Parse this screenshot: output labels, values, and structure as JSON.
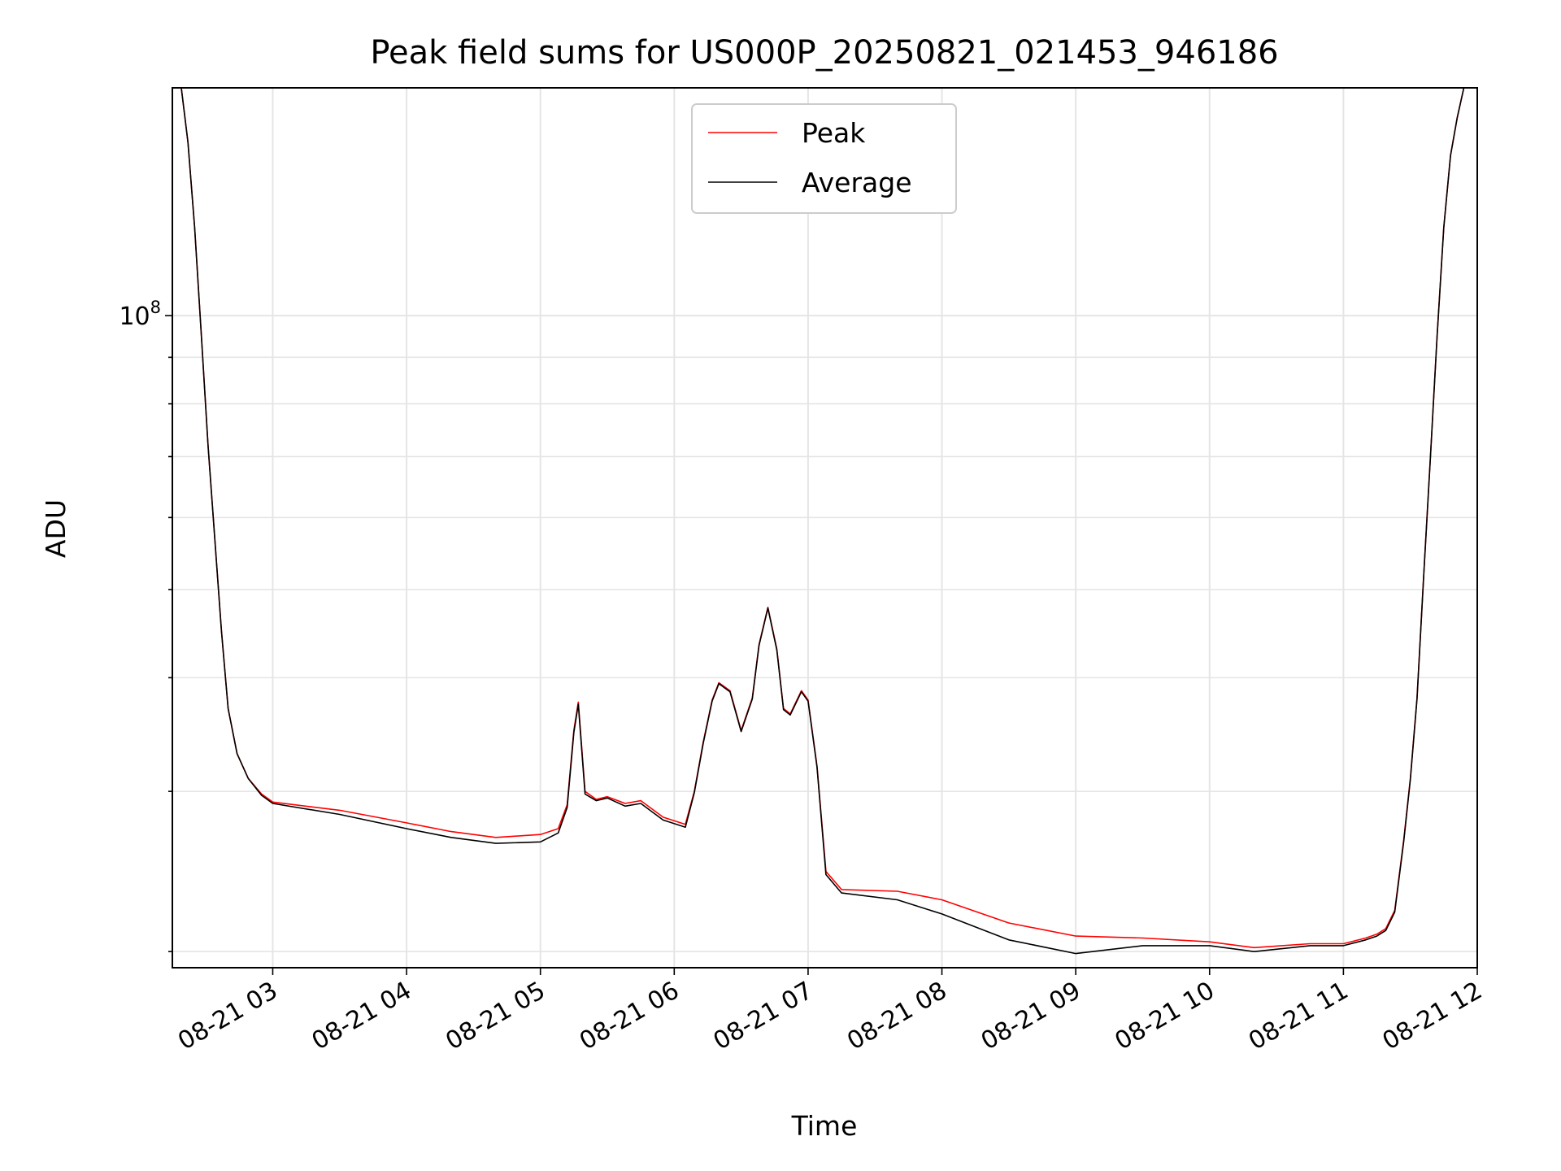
{
  "chart_data": {
    "type": "line",
    "title": "Peak field sums for US000P_20250821_021453_946186",
    "xlabel": "Time",
    "ylabel": "ADU",
    "y_scale": "log",
    "x_range": [
      "2025-08-21 02:15",
      "2025-08-21 12:00"
    ],
    "x_ticks": [
      "08-21 03",
      "08-21 04",
      "08-21 05",
      "08-21 06",
      "08-21 07",
      "08-21 08",
      "08-21 09",
      "08-21 10",
      "08-21 11",
      "08-21 12"
    ],
    "y_major_tick": {
      "base": "10",
      "exp": "8"
    },
    "y_range": [
      19200000,
      178000000
    ],
    "grid": true,
    "legend_position": "top-center",
    "series": [
      {
        "name": "Peak",
        "color": "#ff0000",
        "x": [
          "2025-08-21 02:15",
          "2025-08-21 02:19",
          "2025-08-21 02:22",
          "2025-08-21 02:25",
          "2025-08-21 02:28",
          "2025-08-21 02:31",
          "2025-08-21 02:34",
          "2025-08-21 02:37",
          "2025-08-21 02:40",
          "2025-08-21 02:44",
          "2025-08-21 02:49",
          "2025-08-21 02:55",
          "2025-08-21 03:00",
          "2025-08-21 03:30",
          "2025-08-21 04:00",
          "2025-08-21 04:20",
          "2025-08-21 04:40",
          "2025-08-21 05:00",
          "2025-08-21 05:08",
          "2025-08-21 05:12",
          "2025-08-21 05:15",
          "2025-08-21 05:17",
          "2025-08-21 05:20",
          "2025-08-21 05:25",
          "2025-08-21 05:30",
          "2025-08-21 05:38",
          "2025-08-21 05:45",
          "2025-08-21 05:55",
          "2025-08-21 06:05",
          "2025-08-21 06:09",
          "2025-08-21 06:13",
          "2025-08-21 06:17",
          "2025-08-21 06:20",
          "2025-08-21 06:25",
          "2025-08-21 06:30",
          "2025-08-21 06:35",
          "2025-08-21 06:38",
          "2025-08-21 06:42",
          "2025-08-21 06:46",
          "2025-08-21 06:49",
          "2025-08-21 06:52",
          "2025-08-21 06:57",
          "2025-08-21 07:00",
          "2025-08-21 07:04",
          "2025-08-21 07:08",
          "2025-08-21 07:15",
          "2025-08-21 07:40",
          "2025-08-21 08:00",
          "2025-08-21 08:30",
          "2025-08-21 09:00",
          "2025-08-21 09:30",
          "2025-08-21 10:00",
          "2025-08-21 10:20",
          "2025-08-21 10:45",
          "2025-08-21 11:00",
          "2025-08-21 11:10",
          "2025-08-21 11:15",
          "2025-08-21 11:19",
          "2025-08-21 11:23",
          "2025-08-21 11:27",
          "2025-08-21 11:30",
          "2025-08-21 11:33",
          "2025-08-21 11:36",
          "2025-08-21 11:39",
          "2025-08-21 11:42",
          "2025-08-21 11:45",
          "2025-08-21 11:48",
          "2025-08-21 11:51",
          "2025-08-21 11:54",
          "2025-08-21 11:56"
        ],
        "y": [
          178000000,
          178000000,
          155000000,
          125000000,
          95000000,
          72000000,
          57000000,
          45000000,
          37000000,
          33000000,
          31000000,
          29800000,
          29200000,
          28600000,
          27700000,
          27100000,
          26700000,
          26900000,
          27300000,
          29000000,
          35000000,
          37600000,
          30000000,
          29400000,
          29600000,
          29100000,
          29300000,
          28100000,
          27600000,
          30000000,
          34000000,
          37800000,
          39500000,
          38700000,
          35000000,
          38000000,
          43500000,
          47800000,
          43000000,
          37000000,
          36500000,
          38700000,
          37800000,
          32000000,
          24500000,
          23400000,
          23300000,
          22800000,
          21500000,
          20800000,
          20700000,
          20500000,
          20200000,
          20400000,
          20400000,
          20700000,
          20900000,
          21200000,
          22200000,
          26500000,
          31000000,
          38000000,
          52000000,
          70000000,
          95000000,
          125000000,
          150000000,
          165000000,
          178000000,
          178000000
        ]
      },
      {
        "name": "Average",
        "color": "#000000",
        "x": [
          "2025-08-21 02:15",
          "2025-08-21 02:19",
          "2025-08-21 02:22",
          "2025-08-21 02:25",
          "2025-08-21 02:28",
          "2025-08-21 02:31",
          "2025-08-21 02:34",
          "2025-08-21 02:37",
          "2025-08-21 02:40",
          "2025-08-21 02:44",
          "2025-08-21 02:49",
          "2025-08-21 02:55",
          "2025-08-21 03:00",
          "2025-08-21 03:30",
          "2025-08-21 04:00",
          "2025-08-21 04:20",
          "2025-08-21 04:40",
          "2025-08-21 05:00",
          "2025-08-21 05:08",
          "2025-08-21 05:12",
          "2025-08-21 05:15",
          "2025-08-21 05:17",
          "2025-08-21 05:20",
          "2025-08-21 05:25",
          "2025-08-21 05:30",
          "2025-08-21 05:38",
          "2025-08-21 05:45",
          "2025-08-21 05:55",
          "2025-08-21 06:05",
          "2025-08-21 06:09",
          "2025-08-21 06:13",
          "2025-08-21 06:17",
          "2025-08-21 06:20",
          "2025-08-21 06:25",
          "2025-08-21 06:30",
          "2025-08-21 06:35",
          "2025-08-21 06:38",
          "2025-08-21 06:42",
          "2025-08-21 06:46",
          "2025-08-21 06:49",
          "2025-08-21 06:52",
          "2025-08-21 06:57",
          "2025-08-21 07:00",
          "2025-08-21 07:04",
          "2025-08-21 07:08",
          "2025-08-21 07:15",
          "2025-08-21 07:40",
          "2025-08-21 08:00",
          "2025-08-21 08:30",
          "2025-08-21 09:00",
          "2025-08-21 09:30",
          "2025-08-21 10:00",
          "2025-08-21 10:20",
          "2025-08-21 10:45",
          "2025-08-21 11:00",
          "2025-08-21 11:10",
          "2025-08-21 11:15",
          "2025-08-21 11:19",
          "2025-08-21 11:23",
          "2025-08-21 11:27",
          "2025-08-21 11:30",
          "2025-08-21 11:33",
          "2025-08-21 11:36",
          "2025-08-21 11:39",
          "2025-08-21 11:42",
          "2025-08-21 11:45",
          "2025-08-21 11:48",
          "2025-08-21 11:51",
          "2025-08-21 11:54",
          "2025-08-21 11:56"
        ],
        "y": [
          178000000,
          178000000,
          155000000,
          125000000,
          95000000,
          72000000,
          57000000,
          45000000,
          37000000,
          33000000,
          31000000,
          29700000,
          29100000,
          28300000,
          27300000,
          26700000,
          26300000,
          26400000,
          27000000,
          28800000,
          34800000,
          37400000,
          29800000,
          29300000,
          29500000,
          28900000,
          29100000,
          27900000,
          27400000,
          29900000,
          33900000,
          37700000,
          39400000,
          38600000,
          34900000,
          37900000,
          43400000,
          47700000,
          42900000,
          36900000,
          36400000,
          38600000,
          37700000,
          31900000,
          24300000,
          23200000,
          22800000,
          22000000,
          20600000,
          19900000,
          20300000,
          20300000,
          20000000,
          20300000,
          20300000,
          20600000,
          20800000,
          21100000,
          22100000,
          26400000,
          30900000,
          37900000,
          51900000,
          69900000,
          94900000,
          124900000,
          149900000,
          164900000,
          178000000,
          178000000
        ]
      }
    ]
  }
}
